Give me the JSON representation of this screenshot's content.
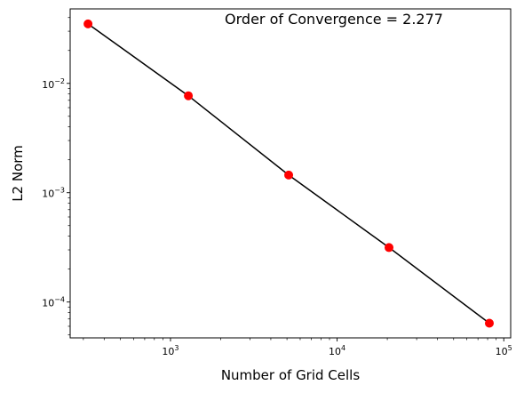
{
  "chart_data": {
    "type": "line",
    "title": "",
    "annotation": "Order of Convergence = 2.277",
    "xlabel": "Number of Grid Cells",
    "ylabel": "L2 Norm",
    "x_scale": "log",
    "y_scale": "log",
    "xlim": [
      250,
      110000
    ],
    "ylim": [
      4.7e-05,
      0.048
    ],
    "grid": false,
    "legend": "none",
    "x_ticks": [
      {
        "value": 1000,
        "base": "10",
        "exp": "3"
      },
      {
        "value": 10000,
        "base": "10",
        "exp": "4"
      },
      {
        "value": 100000,
        "base": "10",
        "exp": "5"
      }
    ],
    "y_ticks": [
      {
        "value": 0.0001,
        "base": "10",
        "exp": "−4"
      },
      {
        "value": 0.001,
        "base": "10",
        "exp": "−3"
      },
      {
        "value": 0.01,
        "base": "10",
        "exp": "−2"
      }
    ],
    "series": [
      {
        "style": "line",
        "color": "#000000",
        "x": [
          320,
          1280,
          5120,
          20480,
          81920
        ],
        "y": [
          0.035,
          0.0077,
          0.00145,
          0.000315,
          6.4e-05
        ]
      },
      {
        "style": "markers",
        "color": "#ff0000",
        "x": [
          320,
          1280,
          5120,
          20480,
          81920
        ],
        "y": [
          0.035,
          0.0077,
          0.00145,
          0.000315,
          6.4e-05
        ]
      }
    ]
  }
}
